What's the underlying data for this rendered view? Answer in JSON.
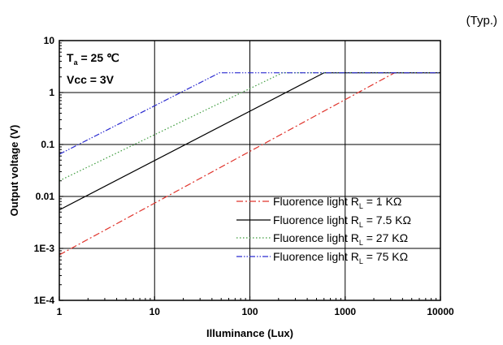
{
  "chart_data": {
    "type": "line",
    "note": "(Typ.)",
    "xlabel": "Illuminance (Lux)",
    "ylabel": "Output voltage (V)",
    "xscale": "log",
    "yscale": "log",
    "xlim": [
      1,
      10000
    ],
    "ylim": [
      0.0001,
      10
    ],
    "grid": true,
    "x_tick_labels": [
      "1",
      "10",
      "100",
      "1000",
      "10000"
    ],
    "y_tick_labels": [
      "10",
      "1",
      "0.1",
      "0.01",
      "1E-3",
      "1E-4"
    ],
    "conditions": {
      "ta_main": "T",
      "ta_sub": "a",
      "ta_rest": " = 25 ℃",
      "vcc": "Vcc = 3V"
    },
    "legend_position": "lower-right",
    "series": [
      {
        "name": "Fluorence light R_L = 1 KΩ",
        "label_prefix": "Fluorence light R",
        "label_sub": "L",
        "label_suffix": " = 1 KΩ",
        "color": "#e0342c",
        "dash": "dashdot",
        "x": [
          1,
          3300,
          10000
        ],
        "y": [
          0.00075,
          2.4,
          2.4
        ]
      },
      {
        "name": "Fluorence light R_L = 7.5 KΩ",
        "label_prefix": "Fluorence light R",
        "label_sub": "L",
        "label_suffix": " = 7.5 KΩ",
        "color": "#000000",
        "dash": "solid",
        "x": [
          1,
          600,
          10000
        ],
        "y": [
          0.0055,
          2.4,
          2.4
        ]
      },
      {
        "name": "Fluorence light R_L = 27 KΩ",
        "label_prefix": "Fluorence light R",
        "label_sub": "L",
        "label_suffix": " = 27 KΩ",
        "color": "#3a9a3a",
        "dash": "dotted",
        "x": [
          1,
          220,
          10000
        ],
        "y": [
          0.02,
          2.4,
          2.4
        ]
      },
      {
        "name": "Fluorence light R_L = 75 KΩ",
        "label_prefix": "Fluorence light R",
        "label_sub": "L",
        "label_suffix": " = 75 KΩ",
        "color": "#2a2ad0",
        "dash": "dashdotdot",
        "x": [
          1,
          48,
          10000
        ],
        "y": [
          0.065,
          2.4,
          2.4
        ]
      }
    ]
  }
}
